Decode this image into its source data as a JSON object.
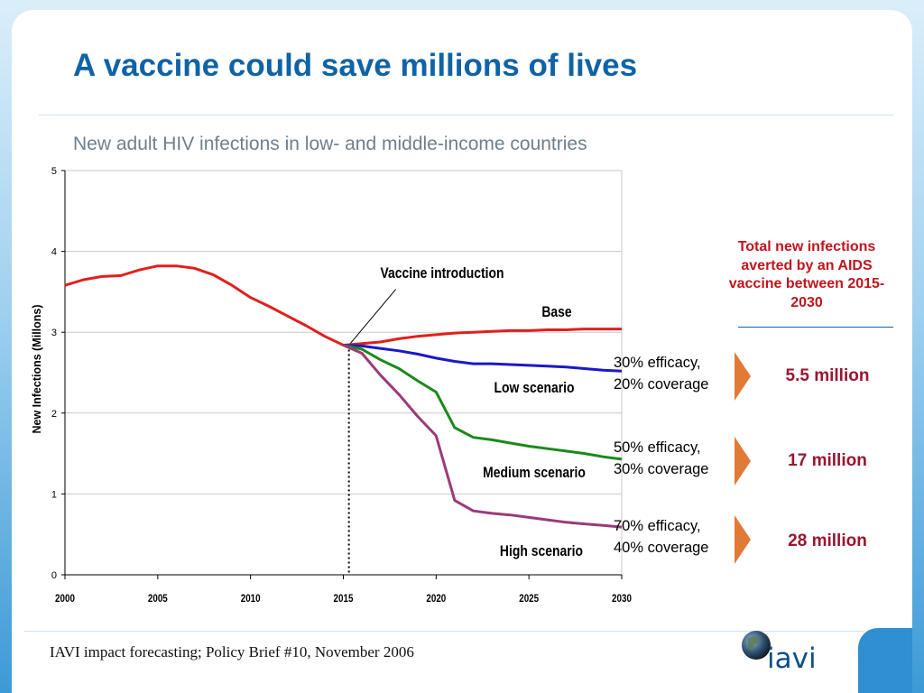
{
  "slide": {
    "title": "A vaccine could save millions of lives",
    "subtitle": "New adult HIV infections in low- and middle-income countries",
    "footer": "IAVI impact forecasting; Policy Brief #10, November 2006",
    "logo_text": "iavi"
  },
  "sidebar": {
    "title": "Total new infections averted by an AIDS vaccine between 2015-2030",
    "scenarios": [
      {
        "line1": "30% efficacy,",
        "line2": "20% coverage",
        "averted": "5.5 million"
      },
      {
        "line1": "50% efficacy,",
        "line2": "30% coverage",
        "averted": "17 million"
      },
      {
        "line1": "70% efficacy,",
        "line2": "40% coverage",
        "averted": "28 million"
      }
    ]
  },
  "chart_data": {
    "type": "line",
    "title": "",
    "xlabel": "",
    "ylabel": "New Infections (Millons)",
    "xlim": [
      2000,
      2030
    ],
    "ylim": [
      0,
      5
    ],
    "x_ticks": [
      2000,
      2005,
      2010,
      2015,
      2020,
      2025,
      2030
    ],
    "y_ticks": [
      0,
      1,
      2,
      3,
      4,
      5
    ],
    "grid": "horizontal",
    "annotations": [
      {
        "text": "Vaccine introduction",
        "x": 2015.3
      },
      {
        "text": "Base"
      },
      {
        "text": "Low scenario"
      },
      {
        "text": "Medium scenario"
      },
      {
        "text": "High scenario"
      }
    ],
    "series": [
      {
        "name": "Base",
        "color": "#e0201c",
        "points": [
          [
            2000,
            3.58
          ],
          [
            2001,
            3.65
          ],
          [
            2002,
            3.69
          ],
          [
            2003,
            3.7
          ],
          [
            2004,
            3.77
          ],
          [
            2005,
            3.82
          ],
          [
            2006,
            3.82
          ],
          [
            2007,
            3.79
          ],
          [
            2008,
            3.71
          ],
          [
            2009,
            3.58
          ],
          [
            2010,
            3.43
          ],
          [
            2011,
            3.32
          ],
          [
            2012,
            3.2
          ],
          [
            2013,
            3.08
          ],
          [
            2014,
            2.95
          ],
          [
            2015,
            2.84
          ],
          [
            2016,
            2.86
          ],
          [
            2017,
            2.88
          ],
          [
            2018,
            2.92
          ],
          [
            2019,
            2.95
          ],
          [
            2020,
            2.97
          ],
          [
            2021,
            2.99
          ],
          [
            2022,
            3.0
          ],
          [
            2023,
            3.01
          ],
          [
            2024,
            3.02
          ],
          [
            2025,
            3.02
          ],
          [
            2026,
            3.03
          ],
          [
            2027,
            3.03
          ],
          [
            2028,
            3.04
          ],
          [
            2029,
            3.04
          ],
          [
            2030,
            3.04
          ]
        ]
      },
      {
        "name": "Low scenario",
        "color": "#1919c8",
        "points": [
          [
            2015,
            2.84
          ],
          [
            2016,
            2.83
          ],
          [
            2017,
            2.8
          ],
          [
            2018,
            2.77
          ],
          [
            2019,
            2.73
          ],
          [
            2020,
            2.68
          ],
          [
            2021,
            2.64
          ],
          [
            2022,
            2.61
          ],
          [
            2023,
            2.61
          ],
          [
            2024,
            2.6
          ],
          [
            2025,
            2.59
          ],
          [
            2026,
            2.58
          ],
          [
            2027,
            2.57
          ],
          [
            2028,
            2.55
          ],
          [
            2029,
            2.53
          ],
          [
            2030,
            2.52
          ]
        ]
      },
      {
        "name": "Medium scenario",
        "color": "#1a8a1a",
        "points": [
          [
            2015,
            2.84
          ],
          [
            2016,
            2.79
          ],
          [
            2017,
            2.66
          ],
          [
            2018,
            2.55
          ],
          [
            2019,
            2.4
          ],
          [
            2020,
            2.26
          ],
          [
            2021,
            1.82
          ],
          [
            2022,
            1.7
          ],
          [
            2023,
            1.67
          ],
          [
            2024,
            1.63
          ],
          [
            2025,
            1.59
          ],
          [
            2026,
            1.56
          ],
          [
            2027,
            1.53
          ],
          [
            2028,
            1.5
          ],
          [
            2029,
            1.46
          ],
          [
            2030,
            1.43
          ]
        ]
      },
      {
        "name": "High scenario",
        "color": "#9b3a78",
        "points": [
          [
            2015,
            2.84
          ],
          [
            2016,
            2.74
          ],
          [
            2017,
            2.47
          ],
          [
            2018,
            2.23
          ],
          [
            2019,
            1.96
          ],
          [
            2020,
            1.72
          ],
          [
            2021,
            0.92
          ],
          [
            2022,
            0.79
          ],
          [
            2023,
            0.76
          ],
          [
            2024,
            0.74
          ],
          [
            2025,
            0.71
          ],
          [
            2026,
            0.68
          ],
          [
            2027,
            0.65
          ],
          [
            2028,
            0.63
          ],
          [
            2029,
            0.61
          ],
          [
            2030,
            0.59
          ]
        ]
      }
    ]
  }
}
